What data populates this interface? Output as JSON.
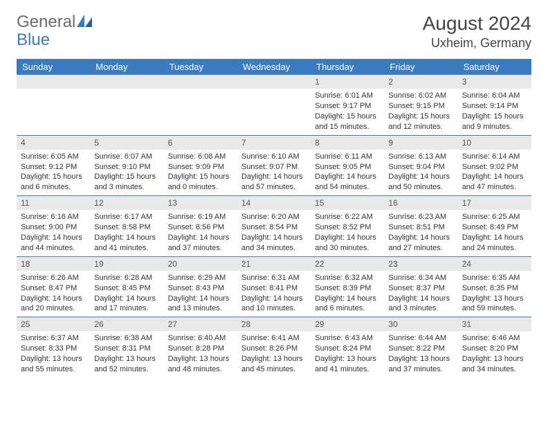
{
  "logo": {
    "general": "General",
    "blue": "Blue"
  },
  "title": {
    "month": "August 2024",
    "location": "Uxheim, Germany"
  },
  "colors": {
    "header_bg": "#3b7bbf",
    "header_text": "#ffffff",
    "daynum_bg": "#e9e9e9",
    "border": "#3b7bbf",
    "logo_gray": "#6b6b6b",
    "logo_blue": "#3b7bbf"
  },
  "weekdays": [
    "Sunday",
    "Monday",
    "Tuesday",
    "Wednesday",
    "Thursday",
    "Friday",
    "Saturday"
  ],
  "weeks": [
    [
      null,
      null,
      null,
      null,
      {
        "n": "1",
        "sunrise": "6:01 AM",
        "sunset": "9:17 PM",
        "daylight": "15 hours and 15 minutes."
      },
      {
        "n": "2",
        "sunrise": "6:02 AM",
        "sunset": "9:15 PM",
        "daylight": "15 hours and 12 minutes."
      },
      {
        "n": "3",
        "sunrise": "6:04 AM",
        "sunset": "9:14 PM",
        "daylight": "15 hours and 9 minutes."
      }
    ],
    [
      {
        "n": "4",
        "sunrise": "6:05 AM",
        "sunset": "9:12 PM",
        "daylight": "15 hours and 6 minutes."
      },
      {
        "n": "5",
        "sunrise": "6:07 AM",
        "sunset": "9:10 PM",
        "daylight": "15 hours and 3 minutes."
      },
      {
        "n": "6",
        "sunrise": "6:08 AM",
        "sunset": "9:09 PM",
        "daylight": "15 hours and 0 minutes."
      },
      {
        "n": "7",
        "sunrise": "6:10 AM",
        "sunset": "9:07 PM",
        "daylight": "14 hours and 57 minutes."
      },
      {
        "n": "8",
        "sunrise": "6:11 AM",
        "sunset": "9:05 PM",
        "daylight": "14 hours and 54 minutes."
      },
      {
        "n": "9",
        "sunrise": "6:13 AM",
        "sunset": "9:04 PM",
        "daylight": "14 hours and 50 minutes."
      },
      {
        "n": "10",
        "sunrise": "6:14 AM",
        "sunset": "9:02 PM",
        "daylight": "14 hours and 47 minutes."
      }
    ],
    [
      {
        "n": "11",
        "sunrise": "6:16 AM",
        "sunset": "9:00 PM",
        "daylight": "14 hours and 44 minutes."
      },
      {
        "n": "12",
        "sunrise": "6:17 AM",
        "sunset": "8:58 PM",
        "daylight": "14 hours and 41 minutes."
      },
      {
        "n": "13",
        "sunrise": "6:19 AM",
        "sunset": "8:56 PM",
        "daylight": "14 hours and 37 minutes."
      },
      {
        "n": "14",
        "sunrise": "6:20 AM",
        "sunset": "8:54 PM",
        "daylight": "14 hours and 34 minutes."
      },
      {
        "n": "15",
        "sunrise": "6:22 AM",
        "sunset": "8:52 PM",
        "daylight": "14 hours and 30 minutes."
      },
      {
        "n": "16",
        "sunrise": "6:23 AM",
        "sunset": "8:51 PM",
        "daylight": "14 hours and 27 minutes."
      },
      {
        "n": "17",
        "sunrise": "6:25 AM",
        "sunset": "8:49 PM",
        "daylight": "14 hours and 24 minutes."
      }
    ],
    [
      {
        "n": "18",
        "sunrise": "6:26 AM",
        "sunset": "8:47 PM",
        "daylight": "14 hours and 20 minutes."
      },
      {
        "n": "19",
        "sunrise": "6:28 AM",
        "sunset": "8:45 PM",
        "daylight": "14 hours and 17 minutes."
      },
      {
        "n": "20",
        "sunrise": "6:29 AM",
        "sunset": "8:43 PM",
        "daylight": "14 hours and 13 minutes."
      },
      {
        "n": "21",
        "sunrise": "6:31 AM",
        "sunset": "8:41 PM",
        "daylight": "14 hours and 10 minutes."
      },
      {
        "n": "22",
        "sunrise": "6:32 AM",
        "sunset": "8:39 PM",
        "daylight": "14 hours and 6 minutes."
      },
      {
        "n": "23",
        "sunrise": "6:34 AM",
        "sunset": "8:37 PM",
        "daylight": "14 hours and 3 minutes."
      },
      {
        "n": "24",
        "sunrise": "6:35 AM",
        "sunset": "8:35 PM",
        "daylight": "13 hours and 59 minutes."
      }
    ],
    [
      {
        "n": "25",
        "sunrise": "6:37 AM",
        "sunset": "8:33 PM",
        "daylight": "13 hours and 55 minutes."
      },
      {
        "n": "26",
        "sunrise": "6:38 AM",
        "sunset": "8:31 PM",
        "daylight": "13 hours and 52 minutes."
      },
      {
        "n": "27",
        "sunrise": "6:40 AM",
        "sunset": "8:28 PM",
        "daylight": "13 hours and 48 minutes."
      },
      {
        "n": "28",
        "sunrise": "6:41 AM",
        "sunset": "8:26 PM",
        "daylight": "13 hours and 45 minutes."
      },
      {
        "n": "29",
        "sunrise": "6:43 AM",
        "sunset": "8:24 PM",
        "daylight": "13 hours and 41 minutes."
      },
      {
        "n": "30",
        "sunrise": "6:44 AM",
        "sunset": "8:22 PM",
        "daylight": "13 hours and 37 minutes."
      },
      {
        "n": "31",
        "sunrise": "6:46 AM",
        "sunset": "8:20 PM",
        "daylight": "13 hours and 34 minutes."
      }
    ]
  ],
  "labels": {
    "sunrise": "Sunrise:",
    "sunset": "Sunset:",
    "daylight": "Daylight:"
  }
}
